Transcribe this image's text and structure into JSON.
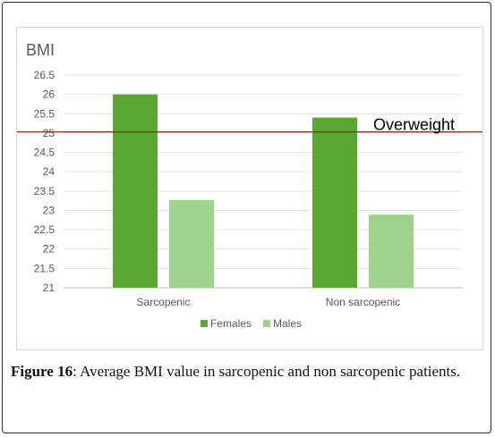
{
  "chart_data": {
    "type": "bar",
    "ylabel": "BMI",
    "ylim": [
      21,
      26.5
    ],
    "yticks": [
      "26.5",
      "26",
      "25.5",
      "25",
      "24.5",
      "24",
      "23.5",
      "23",
      "22.5",
      "22",
      "21.5",
      "21"
    ],
    "categories": [
      "Sarcopenic",
      "Non sarcopenic"
    ],
    "series": [
      {
        "name": "Females",
        "values": [
          26.0,
          25.4
        ],
        "color": "#5aa832"
      },
      {
        "name": "Males",
        "values": [
          23.27,
          22.89
        ],
        "color": "#9ed38e"
      }
    ],
    "reference_line": {
      "value": 25.03,
      "label": "Overweight",
      "color": "#cc0000"
    },
    "legend_position": "bottom",
    "grid": true
  },
  "caption": {
    "figure_label": "Figure 16",
    "text": ": Average BMI value in sarcopenic and non sarcopenic patients."
  }
}
